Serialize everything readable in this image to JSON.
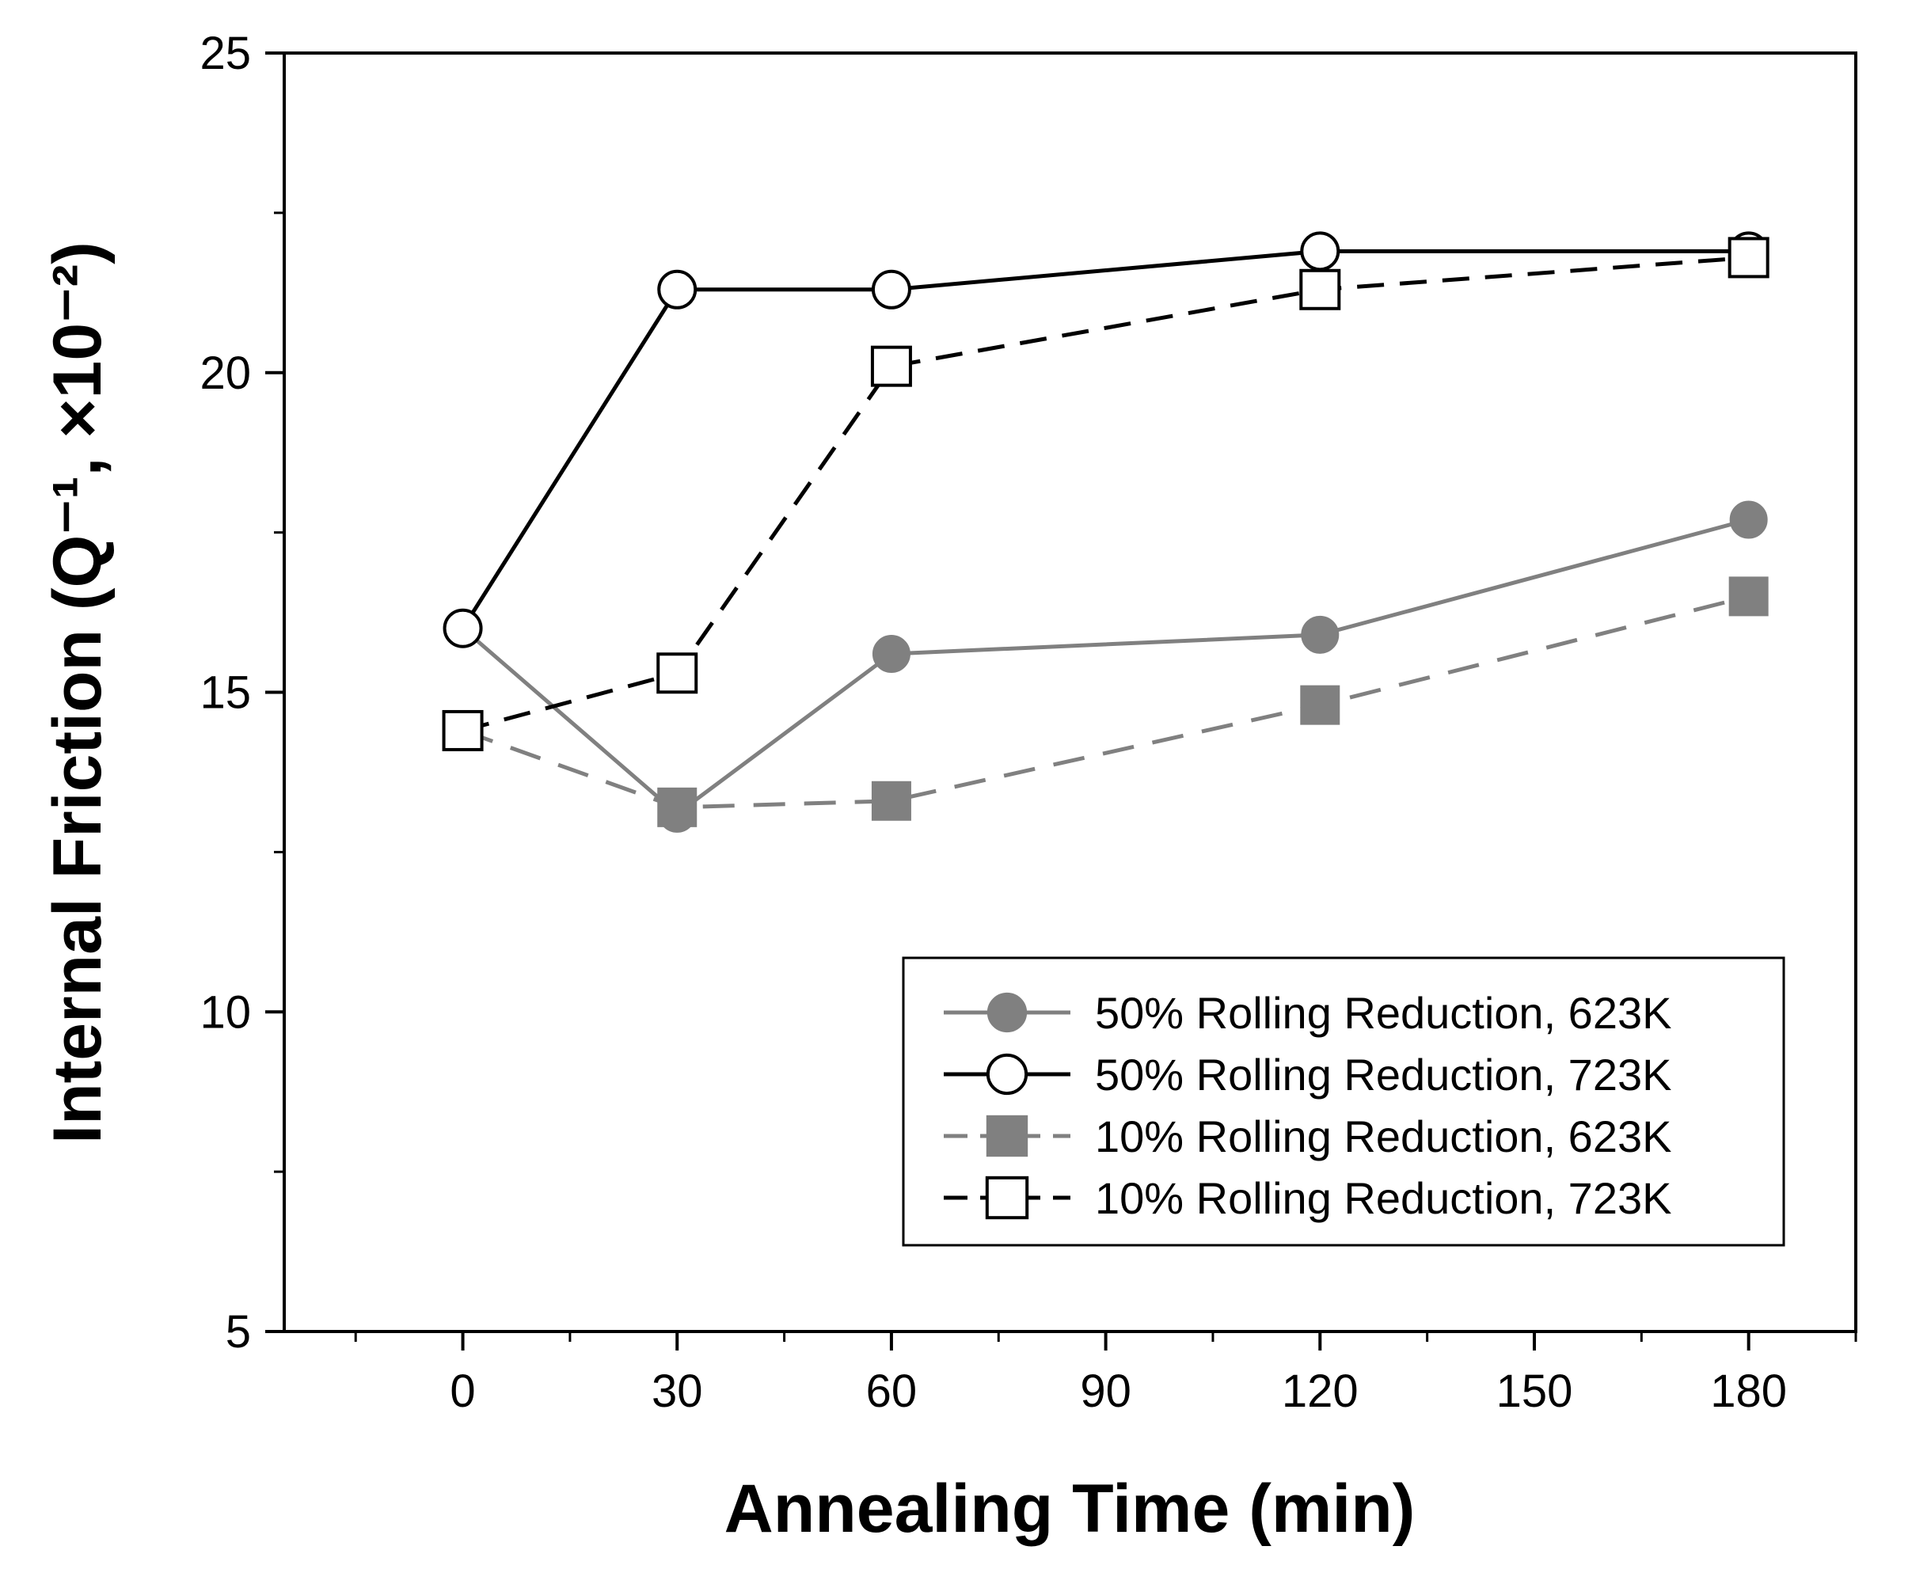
{
  "chart_data": {
    "type": "line",
    "xlabel": "Annealing Time (min)",
    "ylabel": "Internal Friction (Q⁻¹, ×10⁻²)",
    "xlim": [
      -25,
      195
    ],
    "ylim": [
      5,
      25
    ],
    "xticks": [
      0,
      30,
      60,
      90,
      120,
      150,
      180
    ],
    "yticks": [
      5,
      10,
      15,
      20,
      25
    ],
    "x_tick_labels": [
      "0",
      "30",
      "60",
      "90",
      "120",
      "150",
      "180"
    ],
    "y_tick_labels": [
      "5",
      "10",
      "15",
      "20",
      "25"
    ],
    "grid": false,
    "legend_position": "bottom-right",
    "series": [
      {
        "name": "50% Rolling Reduction, 623K",
        "x": [
          0,
          30,
          60,
          120,
          180
        ],
        "y": [
          16.0,
          13.1,
          15.6,
          15.9,
          17.7
        ],
        "color": "#808080",
        "marker": "filled-circle",
        "line_style": "solid"
      },
      {
        "name": "50% Rolling Reduction, 723K",
        "x": [
          0,
          30,
          60,
          120,
          180
        ],
        "y": [
          16.0,
          21.3,
          21.3,
          21.9,
          21.9
        ],
        "color": "#000000",
        "marker": "open-circle",
        "line_style": "solid"
      },
      {
        "name": "10% Rolling Reduction, 623K",
        "x": [
          0,
          30,
          60,
          120,
          180
        ],
        "y": [
          14.4,
          13.2,
          13.3,
          14.8,
          16.5
        ],
        "color": "#808080",
        "marker": "filled-square",
        "line_style": "dashed"
      },
      {
        "name": "10% Rolling Reduction, 723K",
        "x": [
          0,
          30,
          60,
          120,
          180
        ],
        "y": [
          14.4,
          15.3,
          20.1,
          21.3,
          21.8
        ],
        "color": "#000000",
        "marker": "open-square",
        "line_style": "dashed"
      }
    ]
  }
}
